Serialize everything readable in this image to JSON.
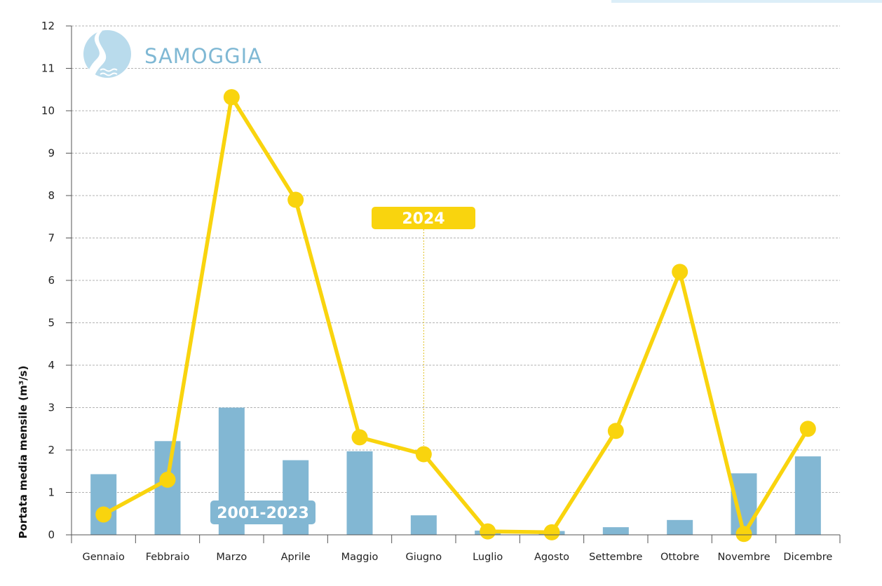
{
  "logo": {
    "name": "SAMOGGIA",
    "icon": "river-drop-icon"
  },
  "chart_data": {
    "type": "bar+line",
    "categories": [
      "Gennaio",
      "Febbraio",
      "Marzo",
      "Aprile",
      "Maggio",
      "Giugno",
      "Luglio",
      "Agosto",
      "Settembre",
      "Ottobre",
      "Novembre",
      "Dicembre"
    ],
    "ylabel": "Portata media mensile (m³/s)",
    "xlabel": "",
    "ylim": [
      0,
      12
    ],
    "yticks": [
      0,
      1,
      2,
      3,
      4,
      5,
      6,
      7,
      8,
      9,
      10,
      11,
      12
    ],
    "grid": true,
    "series": [
      {
        "name": "2001-2023",
        "type": "bar",
        "color": "#82b7d3",
        "values": [
          1.43,
          2.21,
          3.0,
          1.76,
          1.97,
          0.46,
          0.1,
          0.09,
          0.18,
          0.35,
          1.45,
          1.85
        ]
      },
      {
        "name": "2024",
        "type": "line",
        "color": "#f9d40e",
        "values": [
          0.48,
          1.3,
          10.32,
          7.9,
          2.3,
          1.9,
          0.08,
          0.06,
          2.45,
          6.2,
          0.02,
          2.5
        ]
      }
    ]
  }
}
